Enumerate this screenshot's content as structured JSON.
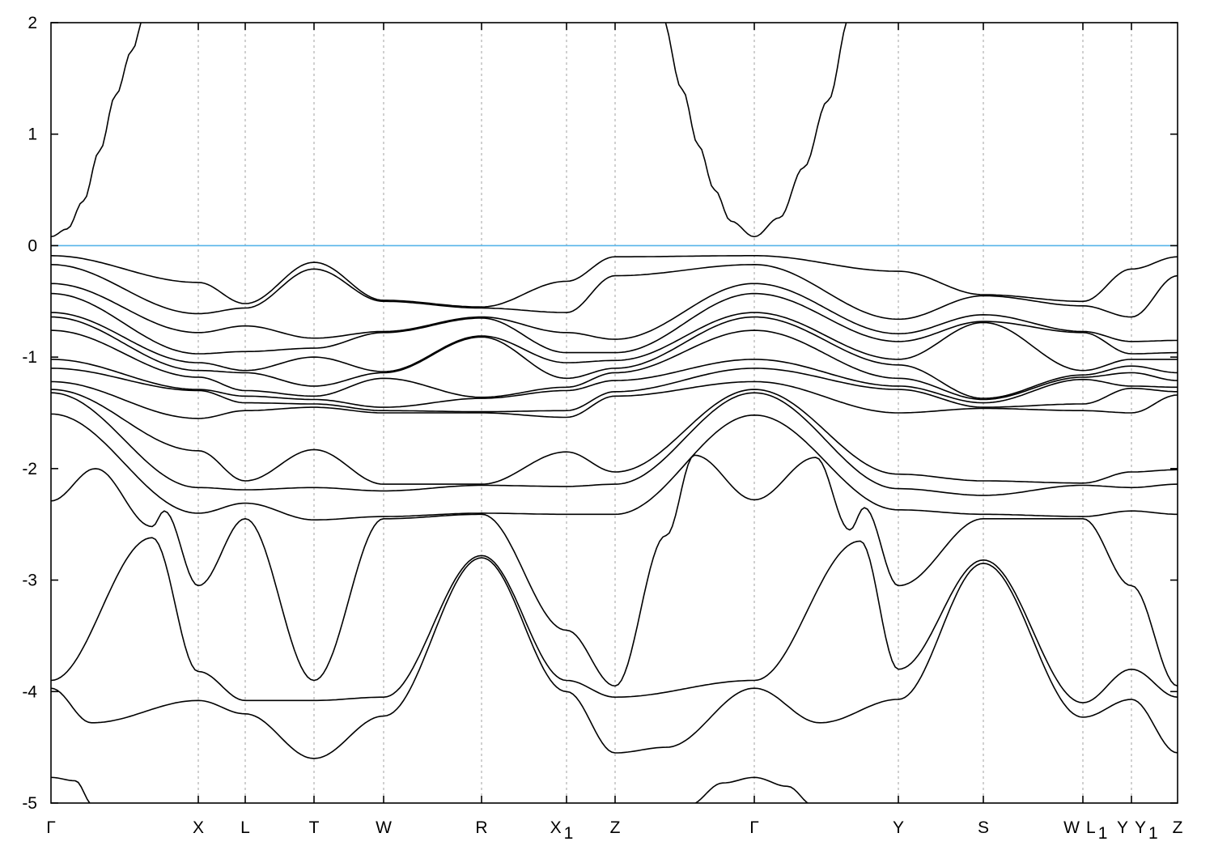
{
  "chart_data": {
    "type": "line",
    "title": "",
    "xlabel": "",
    "ylabel": "",
    "ylim": [
      -5,
      2
    ],
    "yticks": [
      -5,
      -4,
      -3,
      -2,
      -1,
      0,
      1,
      2
    ],
    "grid": "vertical dashed lines at high-symmetry points",
    "fermi_level": {
      "value": 0,
      "color": "#56b4e9"
    },
    "band_color": "#000000",
    "xlim": [
      0,
      13.92
    ],
    "k_ticks": [
      {
        "k": 0,
        "label": {
          "text": "Γ"
        }
      },
      {
        "k": 1.82,
        "label": {
          "text": "X"
        }
      },
      {
        "k": 2.4,
        "label": {
          "text": "L"
        }
      },
      {
        "k": 3.25,
        "label": {
          "text": "T"
        }
      },
      {
        "k": 4.11,
        "label": {
          "text": "W"
        }
      },
      {
        "k": 5.32,
        "label": {
          "text": "R"
        }
      },
      {
        "k": 6.37,
        "label": {
          "text": "X",
          "sub": "1"
        }
      },
      {
        "k": 6.97,
        "label": {
          "text": "Z"
        }
      },
      {
        "k": 8.69,
        "label": {
          "text": "Γ"
        }
      },
      {
        "k": 10.47,
        "label": {
          "text": "Y"
        }
      },
      {
        "k": 11.52,
        "label": {
          "text": "S"
        }
      },
      {
        "k": 12.75,
        "left": {
          "text": "W"
        },
        "right": {
          "text": "L",
          "sub": "1"
        }
      },
      {
        "k": 13.35,
        "left": {
          "text": "Y"
        },
        "right": {
          "text": "Y",
          "sub": "1"
        }
      },
      {
        "k": 13.92,
        "label": {
          "text": "Z"
        }
      }
    ],
    "valence_bands": [
      {
        "E": [
          -0.09,
          -0.33,
          -0.52,
          -0.15,
          -0.49,
          -0.55,
          -0.32,
          -0.1,
          -0.09,
          -0.23,
          -0.44,
          -0.5,
          -0.21,
          -0.1
        ]
      },
      {
        "E": [
          -0.17,
          -0.61,
          -0.56,
          -0.21,
          -0.5,
          -0.56,
          -0.6,
          -0.27,
          -0.17,
          -0.66,
          -0.45,
          -0.54,
          -0.64,
          -0.27
        ]
      },
      {
        "E": [
          -0.34,
          -0.78,
          -0.72,
          -0.83,
          -0.77,
          -0.64,
          -0.78,
          -0.84,
          -0.34,
          -0.79,
          -0.62,
          -0.77,
          -0.86,
          -0.85
        ]
      },
      {
        "E": [
          -0.43,
          -0.97,
          -0.95,
          -0.92,
          -0.78,
          -0.65,
          -0.96,
          -0.96,
          -0.43,
          -0.86,
          -0.68,
          -0.78,
          -0.97,
          -0.96
        ]
      },
      {
        "E": [
          -0.6,
          -1.05,
          -1.12,
          -1.0,
          -1.13,
          -0.81,
          -1.05,
          -1.03,
          -0.6,
          -1.02,
          -0.69,
          -1.12,
          -1.02,
          -1.02
        ]
      },
      {
        "E": [
          -0.64,
          -1.12,
          -1.14,
          -1.26,
          -1.14,
          -0.82,
          -1.19,
          -1.1,
          -0.64,
          -1.07,
          -1.37,
          -1.16,
          -1.08,
          -1.14
        ]
      },
      {
        "E": [
          -0.76,
          -1.18,
          -1.3,
          -1.35,
          -1.19,
          -1.36,
          -1.27,
          -1.14,
          -0.76,
          -1.19,
          -1.38,
          -1.18,
          -1.14,
          -1.21
        ]
      },
      {
        "E": [
          -1.02,
          -1.29,
          -1.35,
          -1.38,
          -1.45,
          -1.37,
          -1.3,
          -1.21,
          -1.02,
          -1.26,
          -1.41,
          -1.2,
          -1.26,
          -1.27
        ]
      },
      {
        "E": [
          -1.1,
          -1.3,
          -1.41,
          -1.42,
          -1.48,
          -1.49,
          -1.48,
          -1.31,
          -1.1,
          -1.29,
          -1.45,
          -1.42,
          -1.28,
          -1.31
        ]
      },
      {
        "E": [
          -1.22,
          -1.55,
          -1.48,
          -1.45,
          -1.5,
          -1.5,
          -1.54,
          -1.35,
          -1.22,
          -1.5,
          -1.46,
          -1.48,
          -1.5,
          -1.34
        ]
      },
      {
        "E": [
          -1.29,
          -1.84,
          -2.11,
          -1.83,
          -2.14,
          -2.14,
          -1.85,
          -2.03,
          -1.29,
          -2.05,
          -2.11,
          -2.13,
          -2.03,
          -2.01
        ]
      },
      {
        "E": [
          -1.32,
          -2.17,
          -2.19,
          -2.17,
          -2.2,
          -2.15,
          -2.16,
          -2.14,
          -1.32,
          -2.18,
          -2.24,
          -2.15,
          -2.17,
          -2.14
        ]
      },
      {
        "E": [
          -1.51,
          -2.4,
          -2.31,
          -2.46,
          -2.43,
          -2.4,
          -2.41,
          -2.41,
          -1.52,
          -2.37,
          -2.41,
          -2.43,
          -2.38,
          -2.41
        ]
      },
      {
        "E": [
          -2.29,
          -3.05,
          -2.45,
          -3.9,
          -2.45,
          -2.41,
          -3.45,
          -3.95,
          -2.28,
          -3.05,
          -2.45,
          -2.45,
          -3.05,
          -3.95
        ],
        "extra": [
          [
            0.55,
            -2.0
          ],
          [
            1.25,
            -2.52
          ],
          [
            1.4,
            -2.38
          ],
          [
            7.6,
            -2.6
          ],
          [
            7.95,
            -1.88
          ],
          [
            9.45,
            -1.9
          ],
          [
            9.87,
            -2.55
          ],
          [
            10.05,
            -2.35
          ]
        ]
      },
      {
        "E": [
          -3.9,
          -3.82,
          -4.08,
          -4.08,
          -4.05,
          -2.78,
          -3.9,
          -4.05,
          -3.9,
          -3.8,
          -2.82,
          -4.1,
          -3.8,
          -4.05
        ],
        "extra": [
          [
            1.25,
            -2.62
          ],
          [
            10.0,
            -2.65
          ]
        ]
      },
      {
        "E": [
          -3.97,
          -4.08,
          -4.2,
          -4.6,
          -4.22,
          -2.8,
          -4.0,
          -4.55,
          -3.97,
          -4.07,
          -2.85,
          -4.23,
          -4.07,
          -4.55
        ],
        "extra": [
          [
            0.5,
            -4.28
          ],
          [
            7.6,
            -4.5
          ],
          [
            9.5,
            -4.28
          ]
        ]
      }
    ],
    "other_segments": [
      {
        "points": [
          [
            0,
            0.08
          ],
          [
            0.2,
            0.15
          ],
          [
            0.4,
            0.4
          ],
          [
            0.6,
            0.85
          ],
          [
            0.8,
            1.35
          ],
          [
            1.0,
            1.75
          ],
          [
            1.15,
            2.05
          ]
        ]
      },
      {
        "points": [
          [
            7.55,
            2.05
          ],
          [
            7.8,
            1.4
          ],
          [
            8.0,
            0.9
          ],
          [
            8.2,
            0.5
          ],
          [
            8.4,
            0.22
          ],
          [
            8.69,
            0.08
          ],
          [
            9.0,
            0.25
          ],
          [
            9.3,
            0.7
          ],
          [
            9.6,
            1.3
          ],
          [
            9.87,
            2.05
          ]
        ]
      },
      {
        "points": [
          [
            0,
            -4.77
          ],
          [
            0.3,
            -4.8
          ],
          [
            0.52,
            -5.02
          ]
        ]
      },
      {
        "points": [
          [
            7.88,
            -5.02
          ],
          [
            8.3,
            -4.82
          ],
          [
            8.69,
            -4.77
          ],
          [
            9.1,
            -4.85
          ],
          [
            9.42,
            -5.02
          ]
        ]
      }
    ]
  }
}
